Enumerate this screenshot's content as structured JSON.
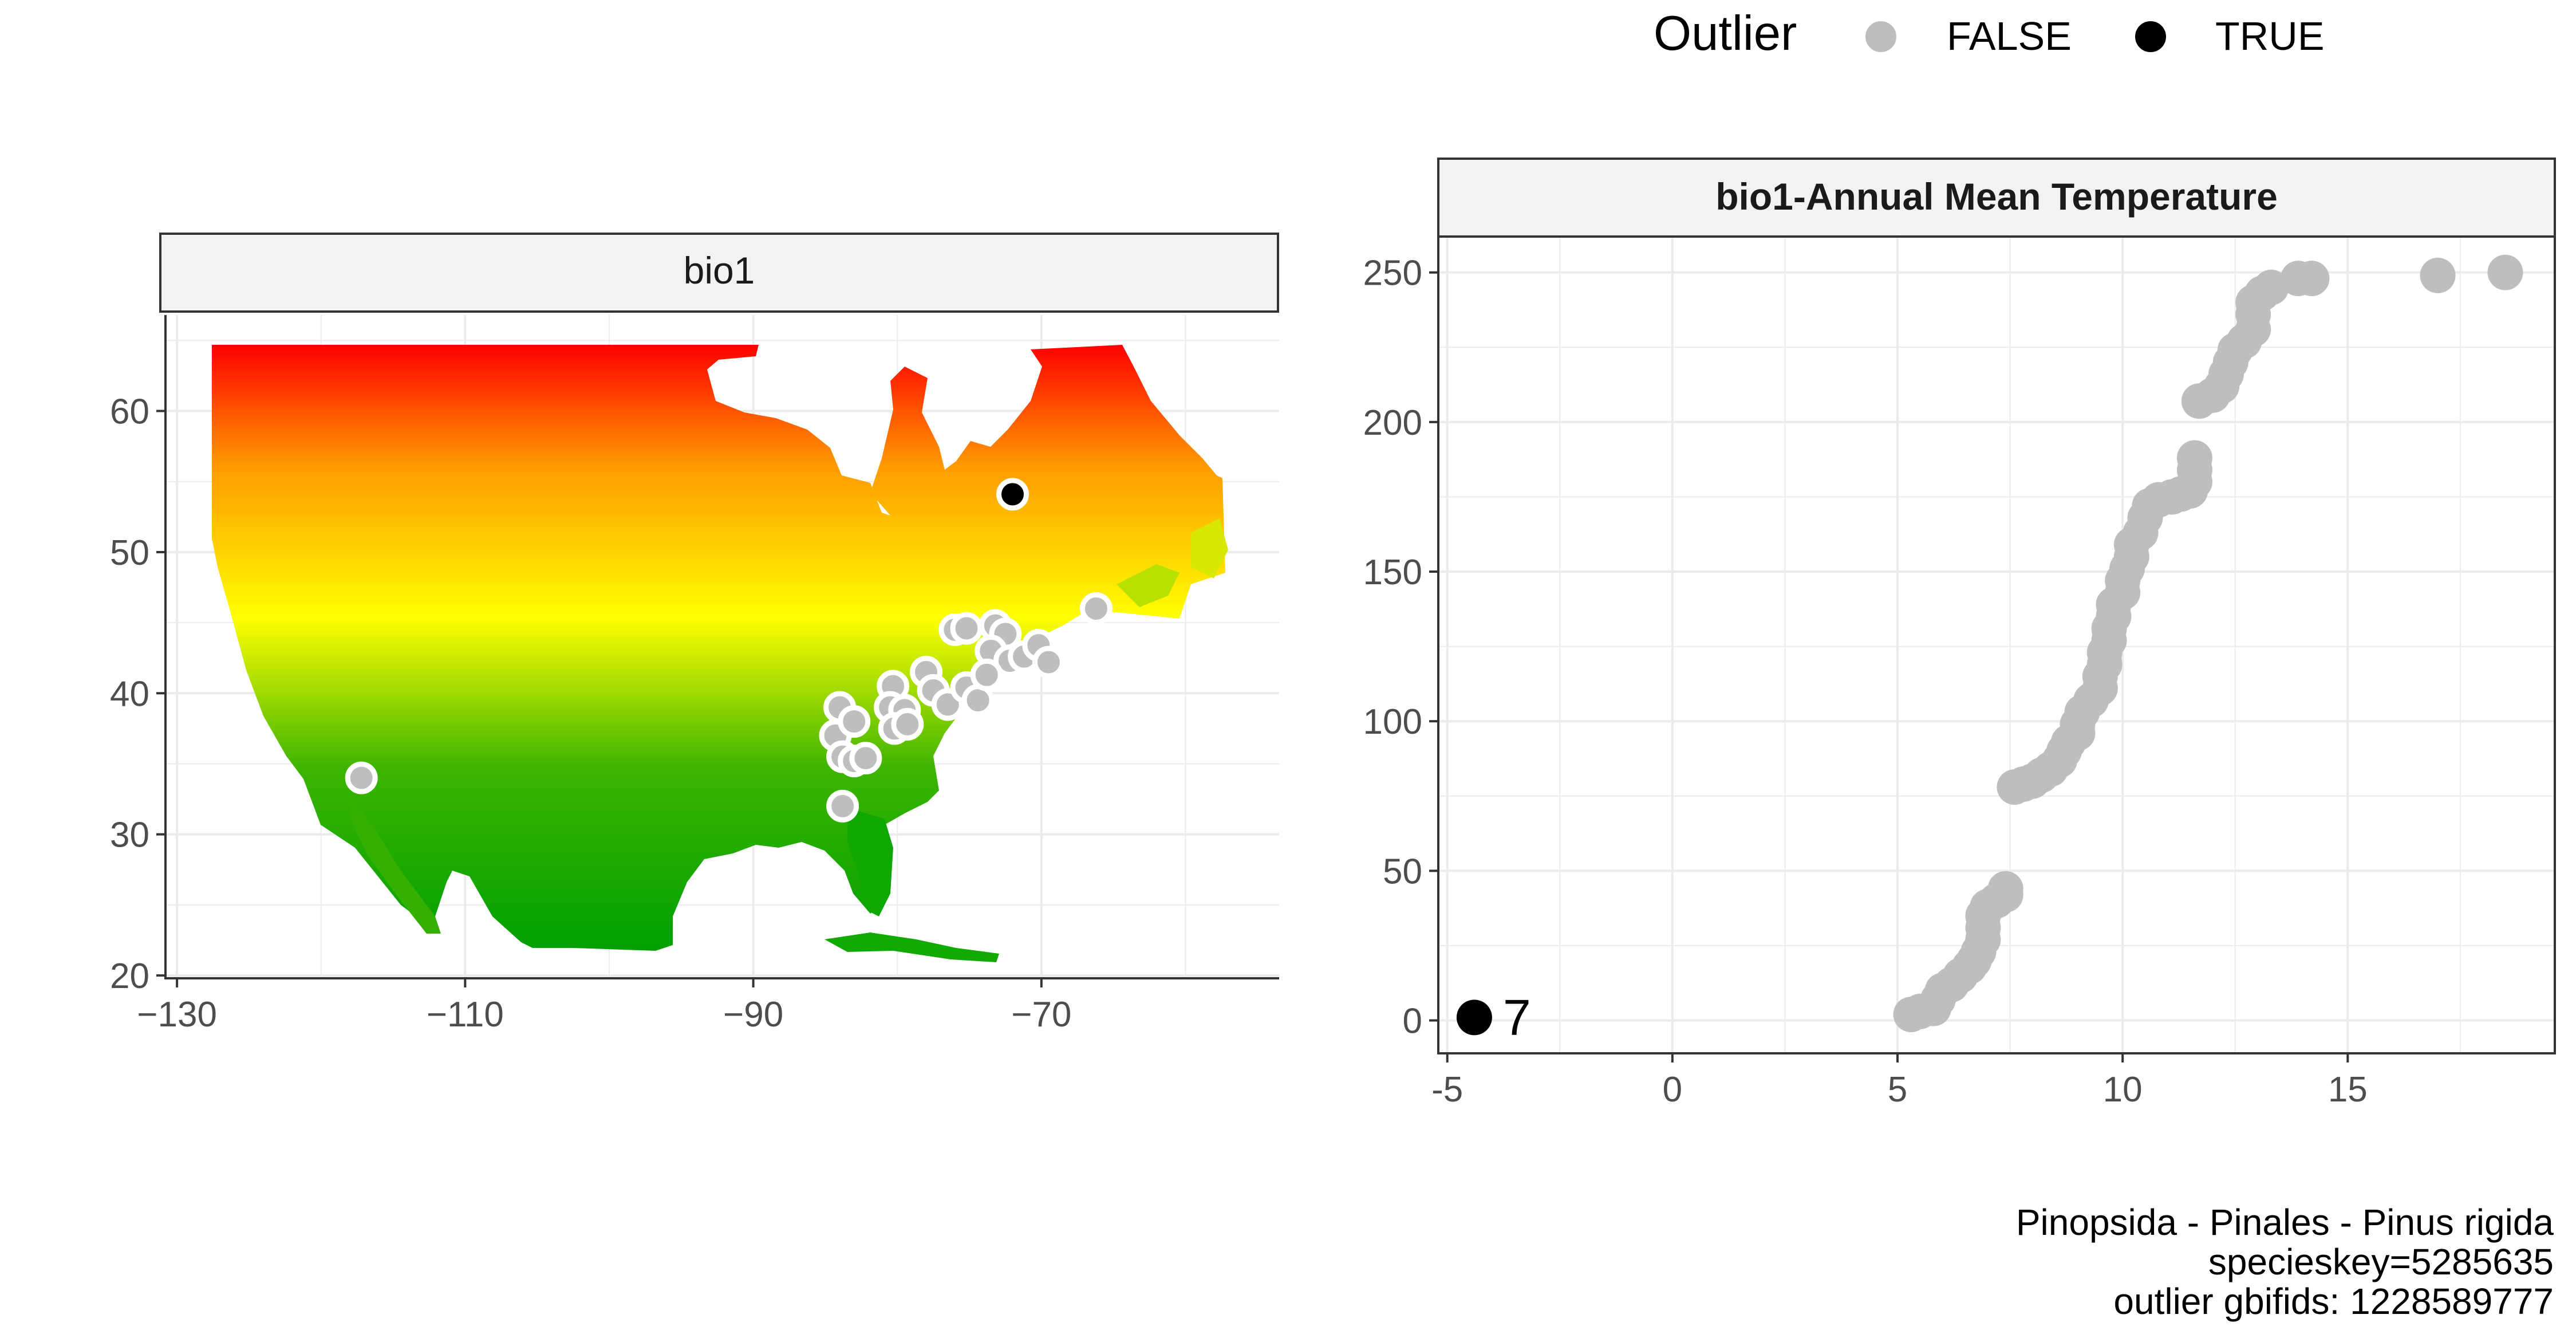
{
  "legend": {
    "title": "Outlier",
    "entries": [
      {
        "label": "FALSE",
        "color": "#bebebe"
      },
      {
        "label": "TRUE",
        "color": "#000000"
      }
    ]
  },
  "chart_data": [
    {
      "type": "map",
      "strip_label": "bio1",
      "x_ticks": [
        -130,
        -110,
        -90,
        -70
      ],
      "y_ticks": [
        20,
        30,
        40,
        50,
        60
      ],
      "xlim": [
        -130.8,
        -53.5
      ],
      "ylim": [
        19.8,
        66.8
      ],
      "raster_gradient": [
        "#00a000",
        "#ffff00",
        "#ff8c00",
        "#ff0000"
      ],
      "occurrence_points": [
        {
          "lon": -117.2,
          "lat": 34.0,
          "outlier": false
        },
        {
          "lon": -84.0,
          "lat": 39.0,
          "outlier": false
        },
        {
          "lon": -84.3,
          "lat": 37.0,
          "outlier": false
        },
        {
          "lon": -83.0,
          "lat": 38.0,
          "outlier": false
        },
        {
          "lon": -83.8,
          "lat": 35.5,
          "outlier": false
        },
        {
          "lon": -83.0,
          "lat": 35.2,
          "outlier": false
        },
        {
          "lon": -82.2,
          "lat": 35.4,
          "outlier": false
        },
        {
          "lon": -83.8,
          "lat": 32.0,
          "outlier": false
        },
        {
          "lon": -80.3,
          "lat": 40.5,
          "outlier": false
        },
        {
          "lon": -80.5,
          "lat": 39.0,
          "outlier": false
        },
        {
          "lon": -79.5,
          "lat": 38.8,
          "outlier": false
        },
        {
          "lon": -80.2,
          "lat": 37.5,
          "outlier": false
        },
        {
          "lon": -79.3,
          "lat": 37.8,
          "outlier": false
        },
        {
          "lon": -78.0,
          "lat": 41.5,
          "outlier": false
        },
        {
          "lon": -77.5,
          "lat": 40.2,
          "outlier": false
        },
        {
          "lon": -76.5,
          "lat": 39.2,
          "outlier": false
        },
        {
          "lon": -75.2,
          "lat": 40.4,
          "outlier": false
        },
        {
          "lon": -74.4,
          "lat": 39.5,
          "outlier": false
        },
        {
          "lon": -76.0,
          "lat": 44.5,
          "outlier": false
        },
        {
          "lon": -75.2,
          "lat": 44.6,
          "outlier": false
        },
        {
          "lon": -73.2,
          "lat": 44.8,
          "outlier": false
        },
        {
          "lon": -72.5,
          "lat": 44.2,
          "outlier": false
        },
        {
          "lon": -73.5,
          "lat": 43.0,
          "outlier": false
        },
        {
          "lon": -72.2,
          "lat": 42.3,
          "outlier": false
        },
        {
          "lon": -71.2,
          "lat": 42.6,
          "outlier": false
        },
        {
          "lon": -70.2,
          "lat": 43.4,
          "outlier": false
        },
        {
          "lon": -69.5,
          "lat": 42.2,
          "outlier": false
        },
        {
          "lon": -73.8,
          "lat": 41.3,
          "outlier": false
        },
        {
          "lon": -66.2,
          "lat": 46.0,
          "outlier": false
        },
        {
          "lon": -72.0,
          "lat": 54.1,
          "outlier": true
        }
      ]
    },
    {
      "type": "scatter",
      "strip_label": "bio1-Annual Mean Temperature",
      "x_ticks": [
        -5,
        0,
        5,
        10,
        15
      ],
      "y_ticks": [
        0,
        50,
        100,
        150,
        200,
        250
      ],
      "xlim": [
        -5.2,
        19.6
      ],
      "ylim": [
        -11,
        262
      ],
      "series": [
        {
          "name": "FALSE",
          "color": "#bebebe",
          "points": [
            [
              5.3,
              2
            ],
            [
              5.5,
              3
            ],
            [
              5.8,
              4
            ],
            [
              5.9,
              7
            ],
            [
              6.0,
              10
            ],
            [
              6.2,
              12
            ],
            [
              6.4,
              15
            ],
            [
              6.6,
              18
            ],
            [
              6.7,
              20
            ],
            [
              6.8,
              23
            ],
            [
              6.9,
              27
            ],
            [
              6.9,
              31
            ],
            [
              6.9,
              35
            ],
            [
              7.0,
              38
            ],
            [
              7.2,
              40
            ],
            [
              7.4,
              42
            ],
            [
              7.4,
              44
            ],
            [
              7.6,
              78
            ],
            [
              7.8,
              79
            ],
            [
              8.0,
              80
            ],
            [
              8.2,
              82
            ],
            [
              8.4,
              84
            ],
            [
              8.6,
              87
            ],
            [
              8.7,
              90
            ],
            [
              8.8,
              93
            ],
            [
              9.0,
              96
            ],
            [
              9.0,
              99
            ],
            [
              9.1,
              103
            ],
            [
              9.3,
              107
            ],
            [
              9.5,
              111
            ],
            [
              9.5,
              115
            ],
            [
              9.6,
              119
            ],
            [
              9.6,
              123
            ],
            [
              9.7,
              127
            ],
            [
              9.7,
              131
            ],
            [
              9.8,
              135
            ],
            [
              9.8,
              139
            ],
            [
              10.0,
              143
            ],
            [
              10.0,
              147
            ],
            [
              10.1,
              151
            ],
            [
              10.2,
              155
            ],
            [
              10.2,
              159
            ],
            [
              10.4,
              163
            ],
            [
              10.5,
              168
            ],
            [
              10.6,
              172
            ],
            [
              10.8,
              174
            ],
            [
              11.1,
              175
            ],
            [
              11.3,
              176
            ],
            [
              11.5,
              177
            ],
            [
              11.6,
              180
            ],
            [
              11.6,
              184
            ],
            [
              11.6,
              188
            ],
            [
              11.7,
              207
            ],
            [
              12.0,
              209
            ],
            [
              12.2,
              212
            ],
            [
              12.3,
              216
            ],
            [
              12.4,
              220
            ],
            [
              12.5,
              224
            ],
            [
              12.7,
              227
            ],
            [
              12.9,
              231
            ],
            [
              12.9,
              236
            ],
            [
              12.9,
              240
            ],
            [
              13.1,
              243
            ],
            [
              13.3,
              245
            ],
            [
              13.9,
              248
            ],
            [
              14.2,
              248
            ],
            [
              17.0,
              249
            ],
            [
              18.5,
              250
            ]
          ]
        },
        {
          "name": "TRUE",
          "color": "#000000",
          "points": [
            [
              -4.4,
              1
            ]
          ]
        }
      ],
      "annotations": [
        {
          "text": "7",
          "x": -4.4,
          "y": 1
        }
      ]
    }
  ],
  "caption": {
    "line1": "Pinopsida - Pinales - Pinus rigida",
    "line2": "specieskey=5285635",
    "line3": "outlier gbifids: 1228589777"
  }
}
